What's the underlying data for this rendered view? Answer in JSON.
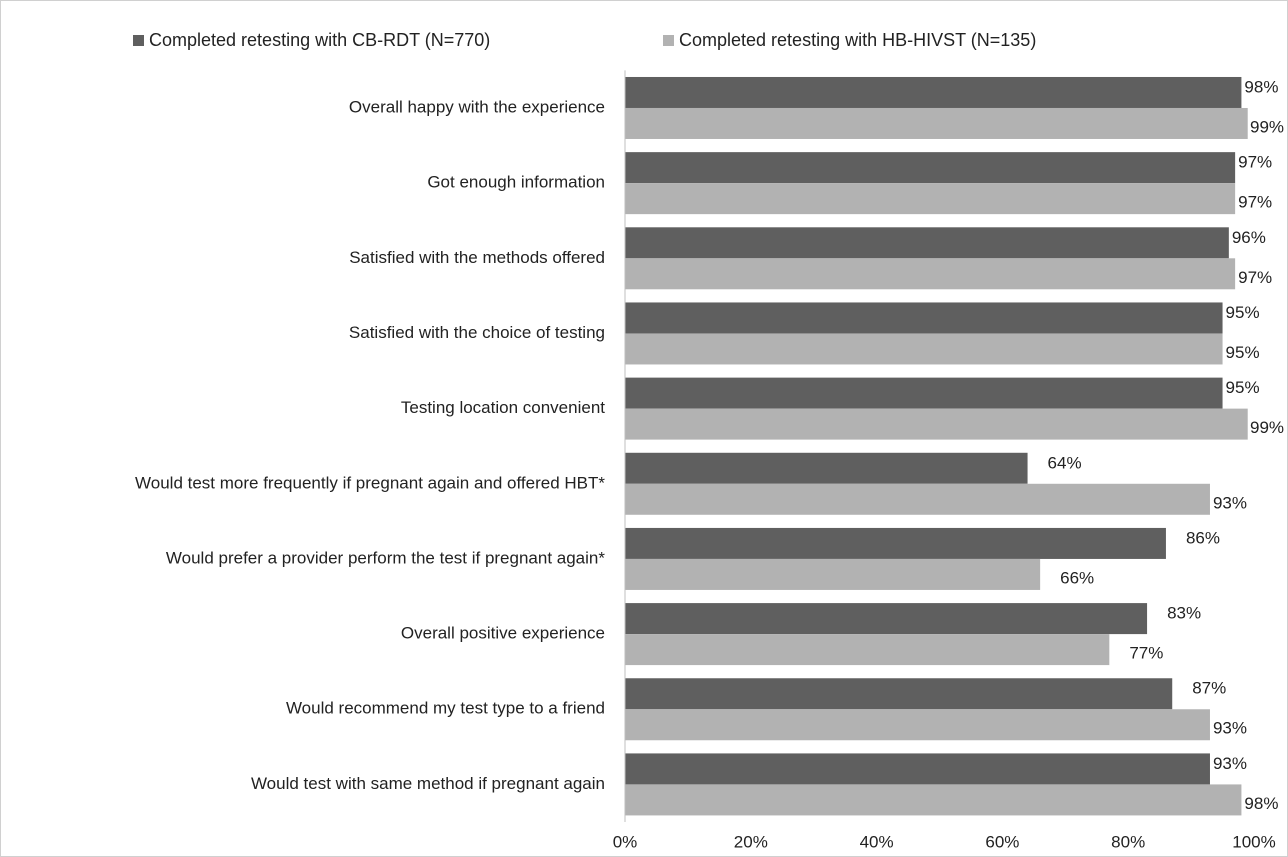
{
  "chart_data": {
    "type": "hbar",
    "categories": [
      "Overall happy with the experience",
      "Got enough information",
      "Satisfied with the methods offered",
      "Satisfied with the choice of testing",
      "Testing location convenient",
      "Would test more frequently if pregnant again and offered HBT*",
      "Would prefer a provider perform the test if pregnant again*",
      "Overall positive experience",
      "Would recommend my test type to a friend",
      "Would test with same method if pregnant again"
    ],
    "series": [
      {
        "name": "Completed retesting with CB-RDT (N=770)",
        "color": "#5f5f5f",
        "values": [
          98,
          97,
          96,
          95,
          95,
          64,
          86,
          83,
          87,
          93
        ],
        "value_labels": [
          "98%",
          "97%",
          "96%",
          "95%",
          "95%",
          "64%",
          "86%",
          "83%",
          "87%",
          "93%"
        ]
      },
      {
        "name": "Completed retesting with HB-HIVST (N=135)",
        "color": "#b2b2b2",
        "values": [
          99,
          97,
          97,
          95,
          99,
          93,
          66,
          77,
          93,
          98
        ],
        "value_labels": [
          "99%",
          "97%",
          "97%",
          "95%",
          "99%",
          "93%",
          "66%",
          "77%",
          "93%",
          "98%"
        ]
      }
    ],
    "xlim": [
      0,
      100
    ],
    "xticks": [
      {
        "value": 0,
        "label": "0%"
      },
      {
        "value": 20,
        "label": "20%"
      },
      {
        "value": 40,
        "label": "40%"
      },
      {
        "value": 60,
        "label": "60%"
      },
      {
        "value": 80,
        "label": "80%"
      },
      {
        "value": 100,
        "label": "100%"
      }
    ],
    "legend": "top"
  }
}
